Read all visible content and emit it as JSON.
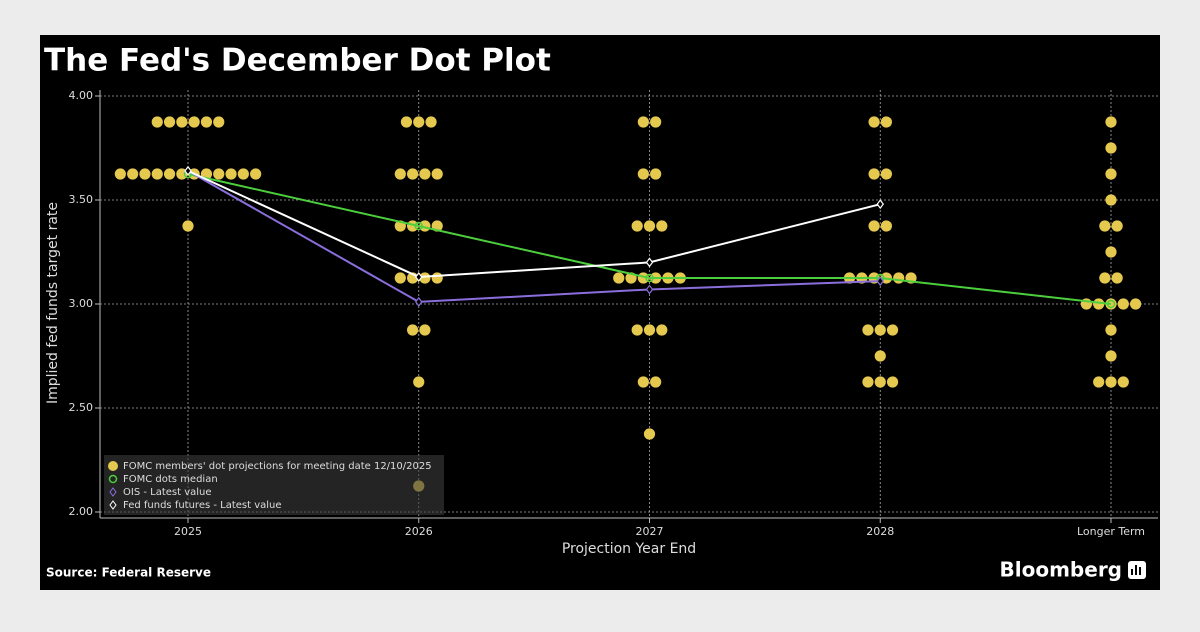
{
  "chart_data": {
    "type": "dot",
    "title": "The Fed's December Dot Plot",
    "x_label": "Projection Year End",
    "y_label": "Implied fed funds target rate",
    "source": "Source: Federal Reserve",
    "brand": "Bloomberg",
    "categories": [
      "2025",
      "2026",
      "2027",
      "2028",
      "Longer Term"
    ],
    "ylim": [
      2.0,
      4.0
    ],
    "yticks": [
      {
        "value": 2.0,
        "label": "2.00"
      },
      {
        "value": 2.5,
        "label": "2.50"
      },
      {
        "value": 3.0,
        "label": "3.00"
      },
      {
        "value": 3.5,
        "label": "3.50"
      },
      {
        "value": 4.0,
        "label": "4.00"
      }
    ],
    "grid": true,
    "legend": "lower left",
    "series": [
      {
        "name": "FOMC members' dot projections for meeting date 12/10/2025",
        "color": "#e5c84e",
        "kind": "dots",
        "values": [
          [
            3.875,
            3.875,
            3.875,
            3.875,
            3.875,
            3.875,
            3.625,
            3.625,
            3.625,
            3.625,
            3.625,
            3.625,
            3.625,
            3.625,
            3.625,
            3.625,
            3.625,
            3.625,
            3.375
          ],
          [
            3.875,
            3.875,
            3.875,
            3.625,
            3.625,
            3.625,
            3.625,
            3.375,
            3.375,
            3.375,
            3.375,
            3.125,
            3.125,
            3.125,
            3.125,
            2.875,
            2.875,
            2.625,
            2.125
          ],
          [
            3.875,
            3.875,
            3.625,
            3.625,
            3.375,
            3.375,
            3.375,
            3.125,
            3.125,
            3.125,
            3.125,
            3.125,
            3.125,
            2.875,
            2.875,
            2.875,
            2.625,
            2.625,
            2.375
          ],
          [
            3.875,
            3.875,
            3.625,
            3.625,
            3.375,
            3.375,
            3.125,
            3.125,
            3.125,
            3.125,
            3.125,
            3.125,
            2.875,
            2.875,
            2.875,
            2.75,
            2.625,
            2.625,
            2.625
          ],
          [
            3.875,
            3.75,
            3.625,
            3.5,
            3.375,
            3.375,
            3.25,
            3.125,
            3.125,
            3.0,
            3.0,
            3.0,
            3.0,
            3.0,
            2.875,
            2.75,
            2.625,
            2.625,
            2.625
          ]
        ]
      },
      {
        "name": "FOMC dots median",
        "color": "#4ccf3c",
        "kind": "line",
        "marker": "circle",
        "values": [
          3.625,
          3.375,
          3.125,
          3.125,
          3.0
        ]
      },
      {
        "name": "OIS - Latest value",
        "color": "#8a6fdc",
        "kind": "line",
        "marker": "diamond",
        "values": [
          3.64,
          3.01,
          3.07,
          3.11,
          null
        ]
      },
      {
        "name": "Fed funds futures - Latest value",
        "color": "#ffffff",
        "kind": "line",
        "marker": "diamond",
        "values": [
          3.64,
          3.13,
          3.2,
          3.48,
          null
        ]
      }
    ]
  }
}
